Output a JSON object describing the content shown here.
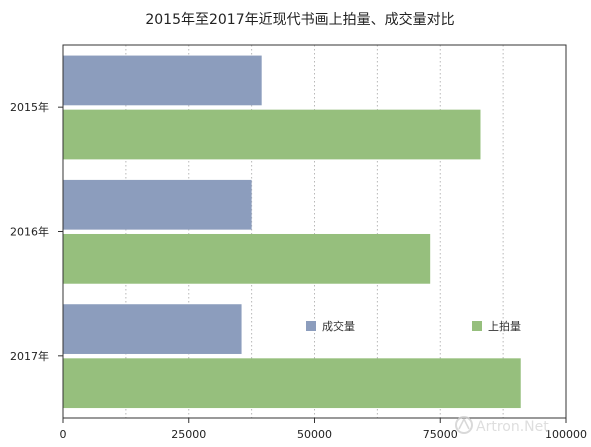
{
  "chart_data": {
    "type": "bar",
    "orientation": "horizontal",
    "title": "2015年至2017年近现代书画上拍量、成交量对比",
    "categories": [
      "2015年",
      "2016年",
      "2017年"
    ],
    "series": [
      {
        "name": "成交量",
        "color": "#8c9dbd",
        "values": [
          39500,
          37500,
          35500
        ]
      },
      {
        "name": "上拍量",
        "color": "#96bf7d",
        "values": [
          83000,
          73000,
          91000
        ]
      }
    ],
    "xlim": [
      0,
      100000
    ],
    "xticks": [
      0,
      25000,
      50000,
      75000,
      100000
    ],
    "xtick_labels": [
      "0",
      "25000",
      "50000",
      "75000",
      "100000"
    ],
    "grid": "vertical-dotted",
    "legend": "inside-right"
  },
  "watermark": "Artron.Net",
  "watermark_icon": "artron-logo-icon"
}
